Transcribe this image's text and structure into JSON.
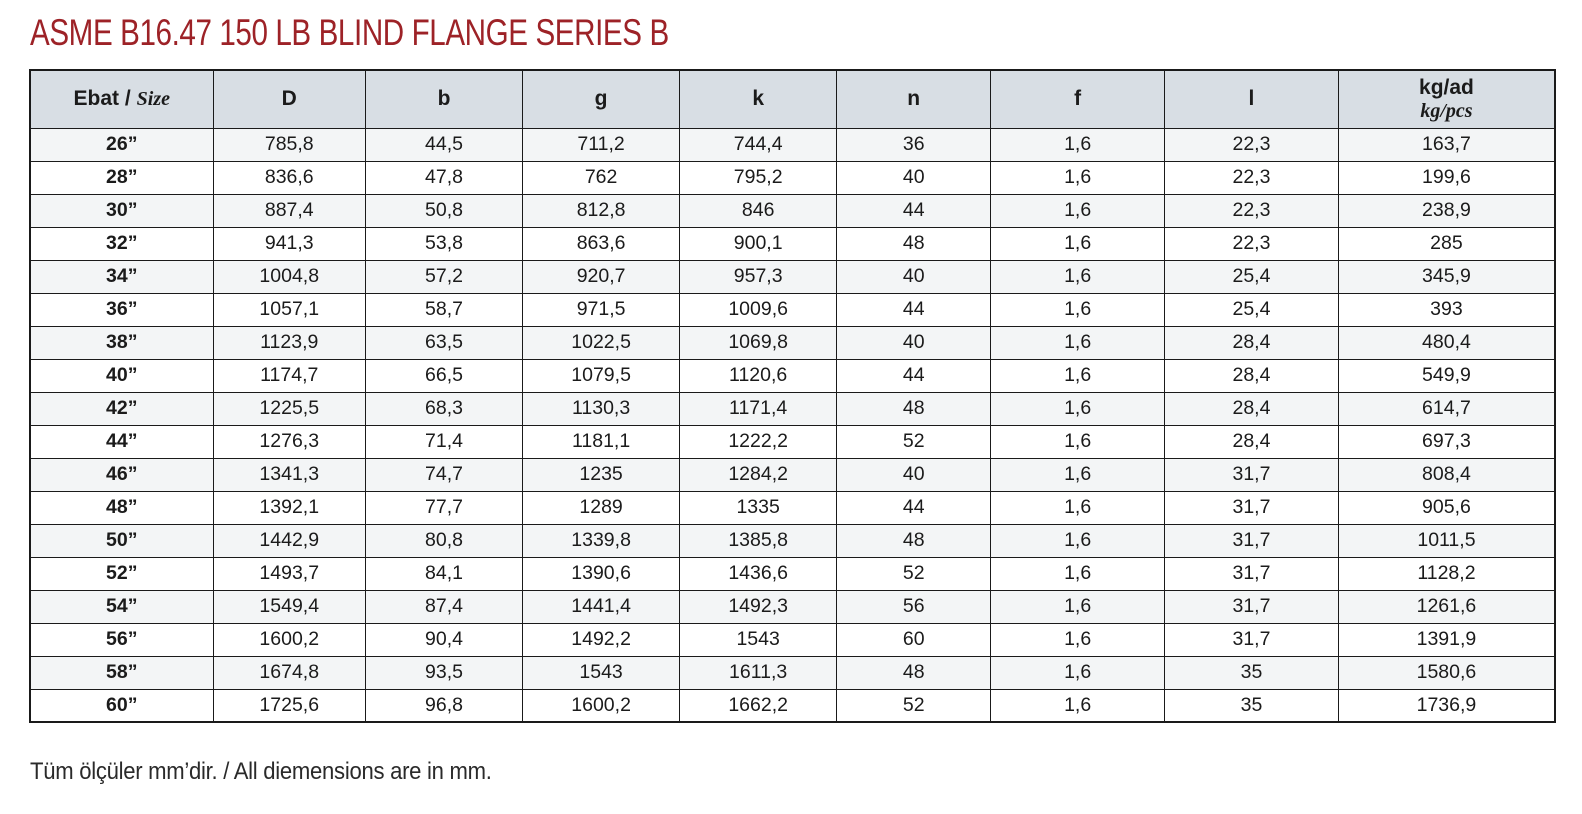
{
  "title": "ASME B16.47 150 LB BLIND FLANGE SERIES B",
  "footer_note": "Tüm ölçüler mm’dir. / All diemensions are in mm.",
  "colors": {
    "title_red": "#9d2227",
    "header_bg": "#d8dee4",
    "alt_row_bg": "#f3f5f6",
    "border": "#1a1a1a"
  },
  "table": {
    "headers": [
      {
        "primary": "Ebat /",
        "secondary": "Size"
      },
      {
        "primary": "D"
      },
      {
        "primary": "b"
      },
      {
        "primary": "g"
      },
      {
        "primary": "k"
      },
      {
        "primary": "n"
      },
      {
        "primary": "f"
      },
      {
        "primary": "l"
      },
      {
        "primary": "kg/ad",
        "secondary": "kg/pcs"
      }
    ],
    "rows": [
      [
        "26”",
        "785,8",
        "44,5",
        "711,2",
        "744,4",
        "36",
        "1,6",
        "22,3",
        "163,7"
      ],
      [
        "28”",
        "836,6",
        "47,8",
        "762",
        "795,2",
        "40",
        "1,6",
        "22,3",
        "199,6"
      ],
      [
        "30”",
        "887,4",
        "50,8",
        "812,8",
        "846",
        "44",
        "1,6",
        "22,3",
        "238,9"
      ],
      [
        "32”",
        "941,3",
        "53,8",
        "863,6",
        "900,1",
        "48",
        "1,6",
        "22,3",
        "285"
      ],
      [
        "34”",
        "1004,8",
        "57,2",
        "920,7",
        "957,3",
        "40",
        "1,6",
        "25,4",
        "345,9"
      ],
      [
        "36”",
        "1057,1",
        "58,7",
        "971,5",
        "1009,6",
        "44",
        "1,6",
        "25,4",
        "393"
      ],
      [
        "38”",
        "1123,9",
        "63,5",
        "1022,5",
        "1069,8",
        "40",
        "1,6",
        "28,4",
        "480,4"
      ],
      [
        "40”",
        "1174,7",
        "66,5",
        "1079,5",
        "1120,6",
        "44",
        "1,6",
        "28,4",
        "549,9"
      ],
      [
        "42”",
        "1225,5",
        "68,3",
        "1130,3",
        "1171,4",
        "48",
        "1,6",
        "28,4",
        "614,7"
      ],
      [
        "44”",
        "1276,3",
        "71,4",
        "1181,1",
        "1222,2",
        "52",
        "1,6",
        "28,4",
        "697,3"
      ],
      [
        "46”",
        "1341,3",
        "74,7",
        "1235",
        "1284,2",
        "40",
        "1,6",
        "31,7",
        "808,4"
      ],
      [
        "48”",
        "1392,1",
        "77,7",
        "1289",
        "1335",
        "44",
        "1,6",
        "31,7",
        "905,6"
      ],
      [
        "50”",
        "1442,9",
        "80,8",
        "1339,8",
        "1385,8",
        "48",
        "1,6",
        "31,7",
        "1011,5"
      ],
      [
        "52”",
        "1493,7",
        "84,1",
        "1390,6",
        "1436,6",
        "52",
        "1,6",
        "31,7",
        "1128,2"
      ],
      [
        "54”",
        "1549,4",
        "87,4",
        "1441,4",
        "1492,3",
        "56",
        "1,6",
        "31,7",
        "1261,6"
      ],
      [
        "56”",
        "1600,2",
        "90,4",
        "1492,2",
        "1543",
        "60",
        "1,6",
        "31,7",
        "1391,9"
      ],
      [
        "58”",
        "1674,8",
        "93,5",
        "1543",
        "1611,3",
        "48",
        "1,6",
        "35",
        "1580,6"
      ],
      [
        "60”",
        "1725,6",
        "96,8",
        "1600,2",
        "1662,2",
        "52",
        "1,6",
        "35",
        "1736,9"
      ]
    ]
  }
}
